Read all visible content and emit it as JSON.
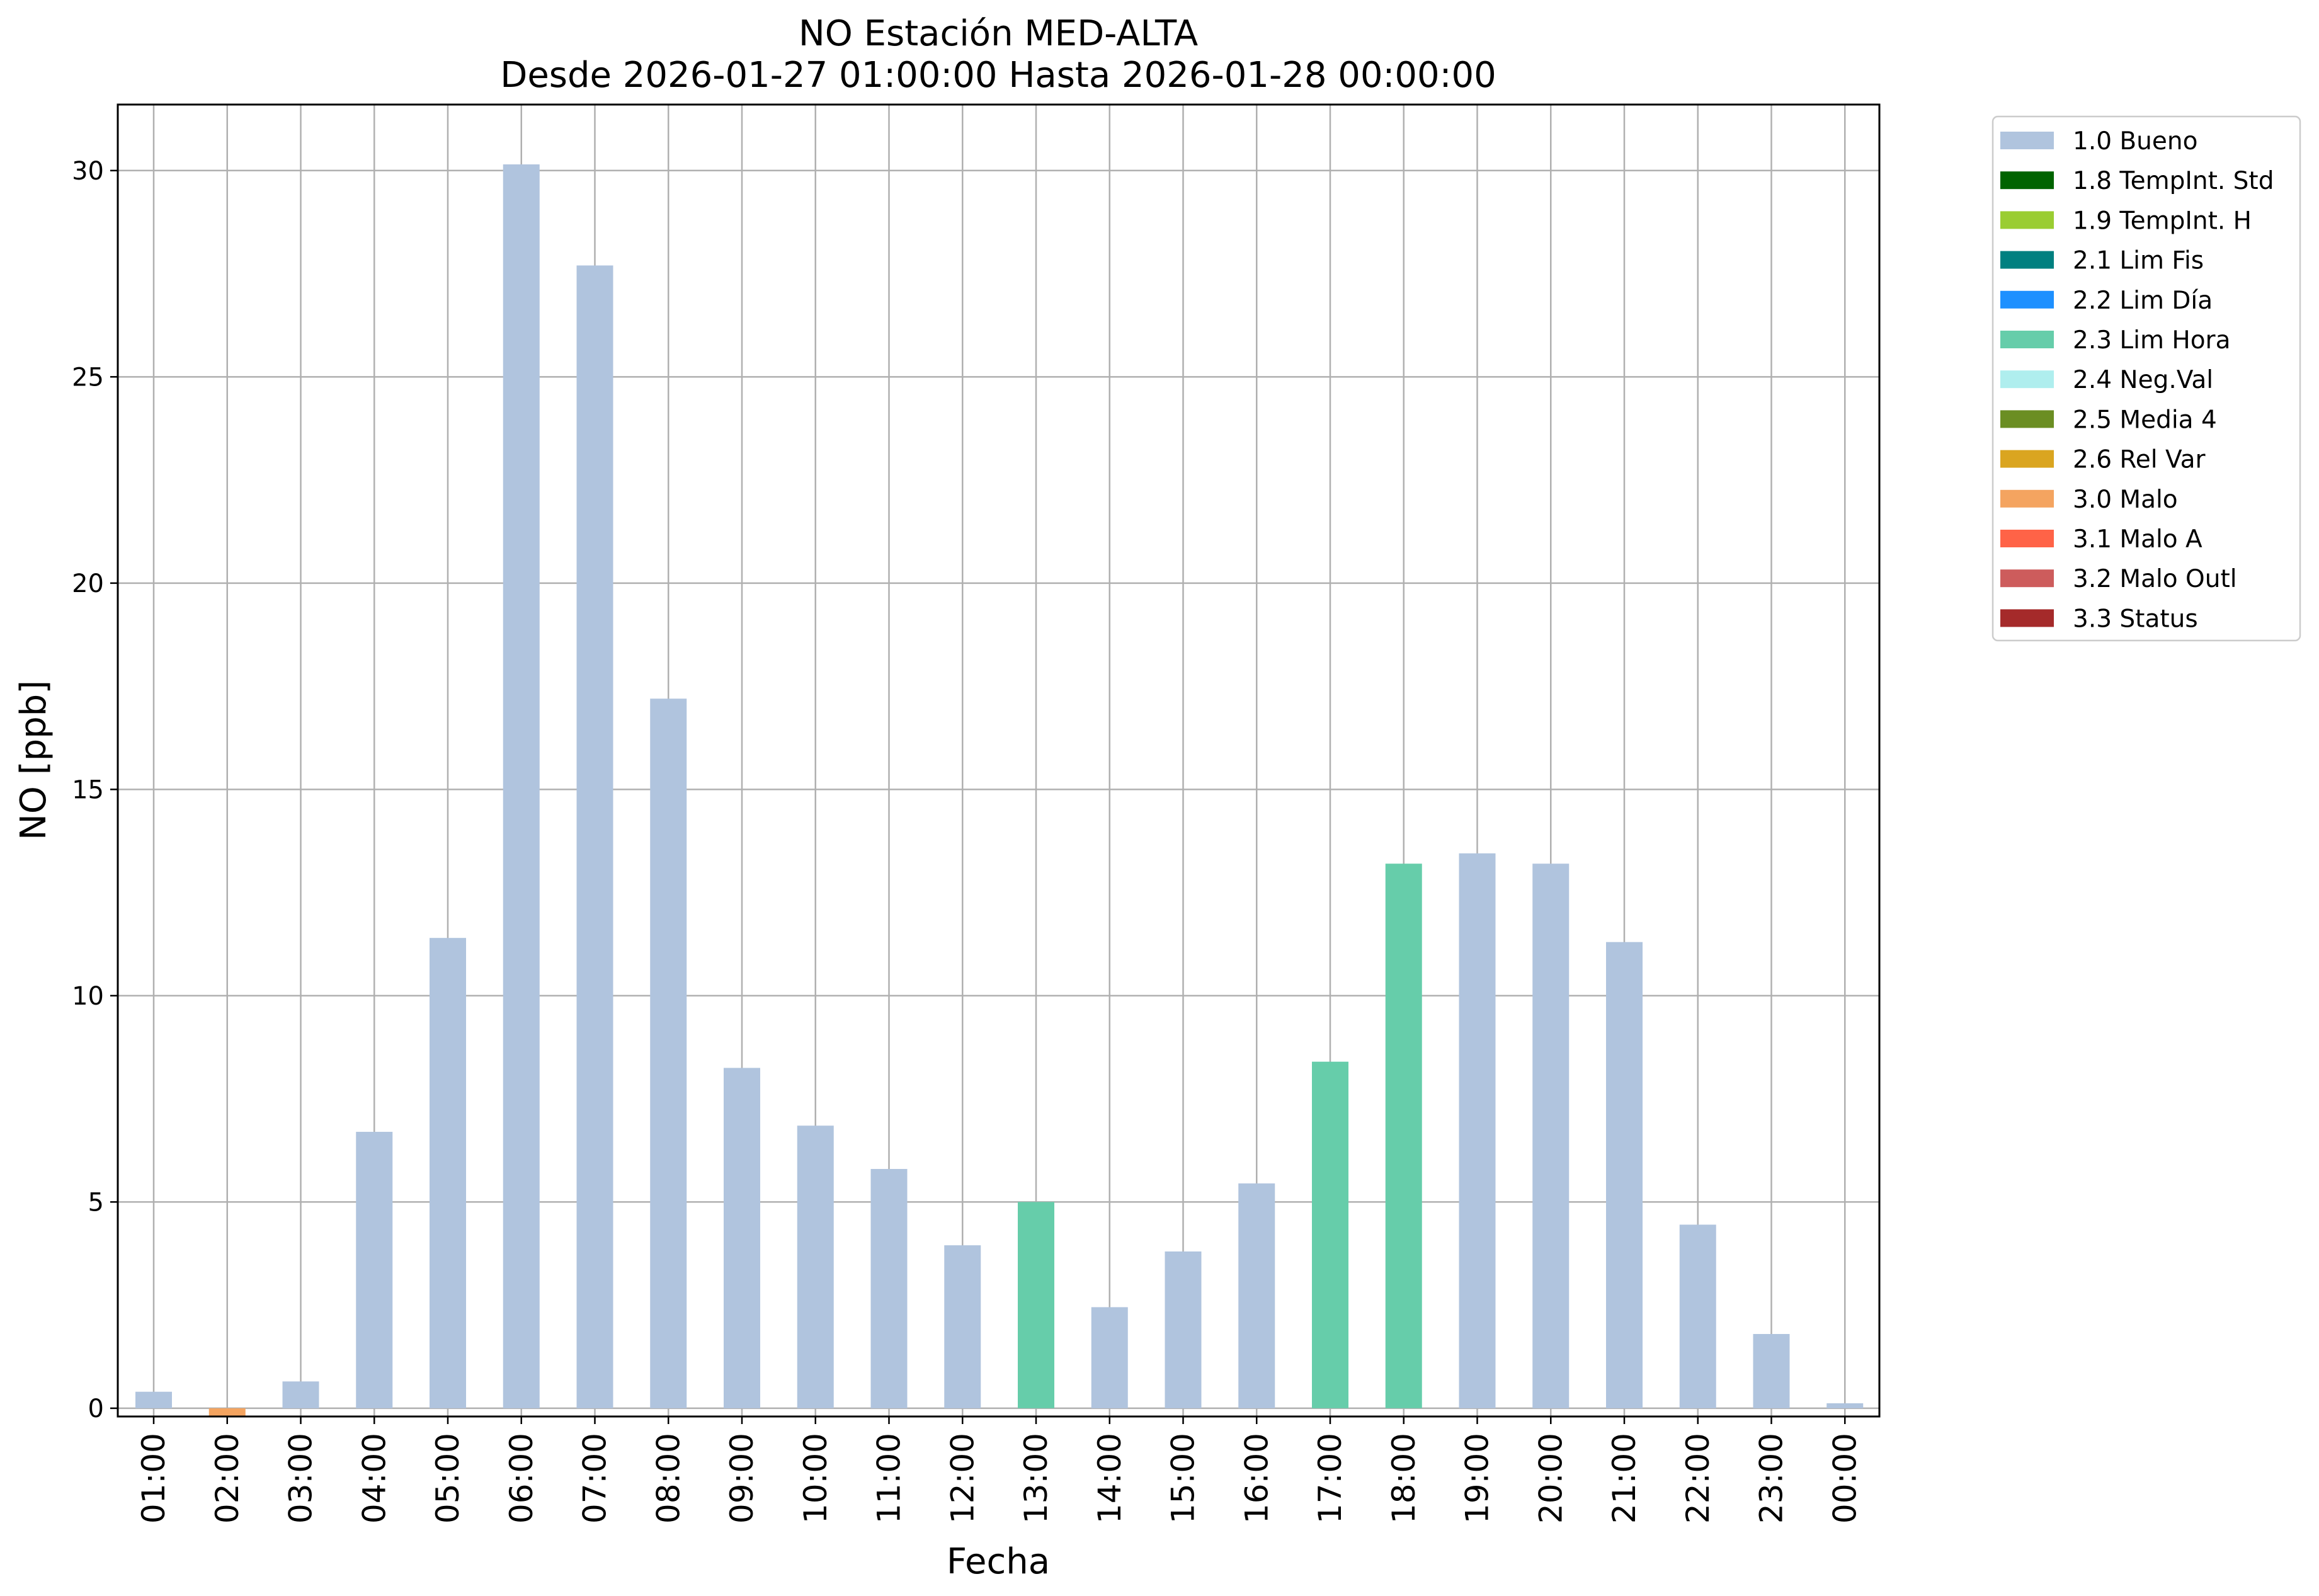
{
  "chart_data": {
    "type": "bar",
    "title": "NO Estación MED-ALTA",
    "subtitle": "Desde 2026-01-27 01:00:00 Hasta 2026-01-28 00:00:00",
    "xlabel": "Fecha",
    "ylabel": "NO [ppb]",
    "ylim": [
      -0.2,
      31.6
    ],
    "yticks": [
      0,
      5,
      10,
      15,
      20,
      25,
      30
    ],
    "grid": true,
    "legend_position": "outside-top-right",
    "categories": [
      "01:00",
      "02:00",
      "03:00",
      "04:00",
      "05:00",
      "06:00",
      "07:00",
      "08:00",
      "09:00",
      "10:00",
      "11:00",
      "12:00",
      "13:00",
      "14:00",
      "15:00",
      "16:00",
      "17:00",
      "18:00",
      "19:00",
      "20:00",
      "21:00",
      "22:00",
      "23:00",
      "00:00"
    ],
    "values": [
      0.4,
      -0.2,
      0.65,
      6.7,
      11.4,
      30.15,
      27.7,
      17.2,
      8.25,
      6.85,
      5.8,
      3.95,
      5.0,
      2.45,
      3.8,
      5.45,
      8.4,
      13.2,
      13.45,
      13.2,
      11.3,
      4.45,
      1.8,
      0.12
    ],
    "flags": [
      "1.0 Bueno",
      "3.0 Malo",
      "1.0 Bueno",
      "1.0 Bueno",
      "1.0 Bueno",
      "1.0 Bueno",
      "1.0 Bueno",
      "1.0 Bueno",
      "1.0 Bueno",
      "1.0 Bueno",
      "1.0 Bueno",
      "1.0 Bueno",
      "2.3 Lim Hora",
      "1.0 Bueno",
      "1.0 Bueno",
      "1.0 Bueno",
      "2.3 Lim Hora",
      "2.3 Lim Hora",
      "1.0 Bueno",
      "1.0 Bueno",
      "1.0 Bueno",
      "1.0 Bueno",
      "1.0 Bueno",
      "1.0 Bueno"
    ],
    "legend": [
      {
        "label": "1.0 Bueno",
        "color": "#b0c4de"
      },
      {
        "label": "1.8 TempInt. Std",
        "color": "#006400"
      },
      {
        "label": "1.9 TempInt. H",
        "color": "#9acd32"
      },
      {
        "label": "2.1 Lim Fis",
        "color": "#008080"
      },
      {
        "label": "2.2 Lim Día",
        "color": "#1e90ff"
      },
      {
        "label": "2.3 Lim Hora",
        "color": "#66cdaa"
      },
      {
        "label": "2.4 Neg.Val",
        "color": "#afeeee"
      },
      {
        "label": "2.5 Media 4",
        "color": "#6b8e23"
      },
      {
        "label": "2.6 Rel Var",
        "color": "#daa520"
      },
      {
        "label": "3.0 Malo",
        "color": "#f4a460"
      },
      {
        "label": "3.1 Malo A",
        "color": "#ff6347"
      },
      {
        "label": "3.2 Malo Outl",
        "color": "#cd5c5c"
      },
      {
        "label": "3.3 Status",
        "color": "#a52a2a"
      }
    ]
  }
}
